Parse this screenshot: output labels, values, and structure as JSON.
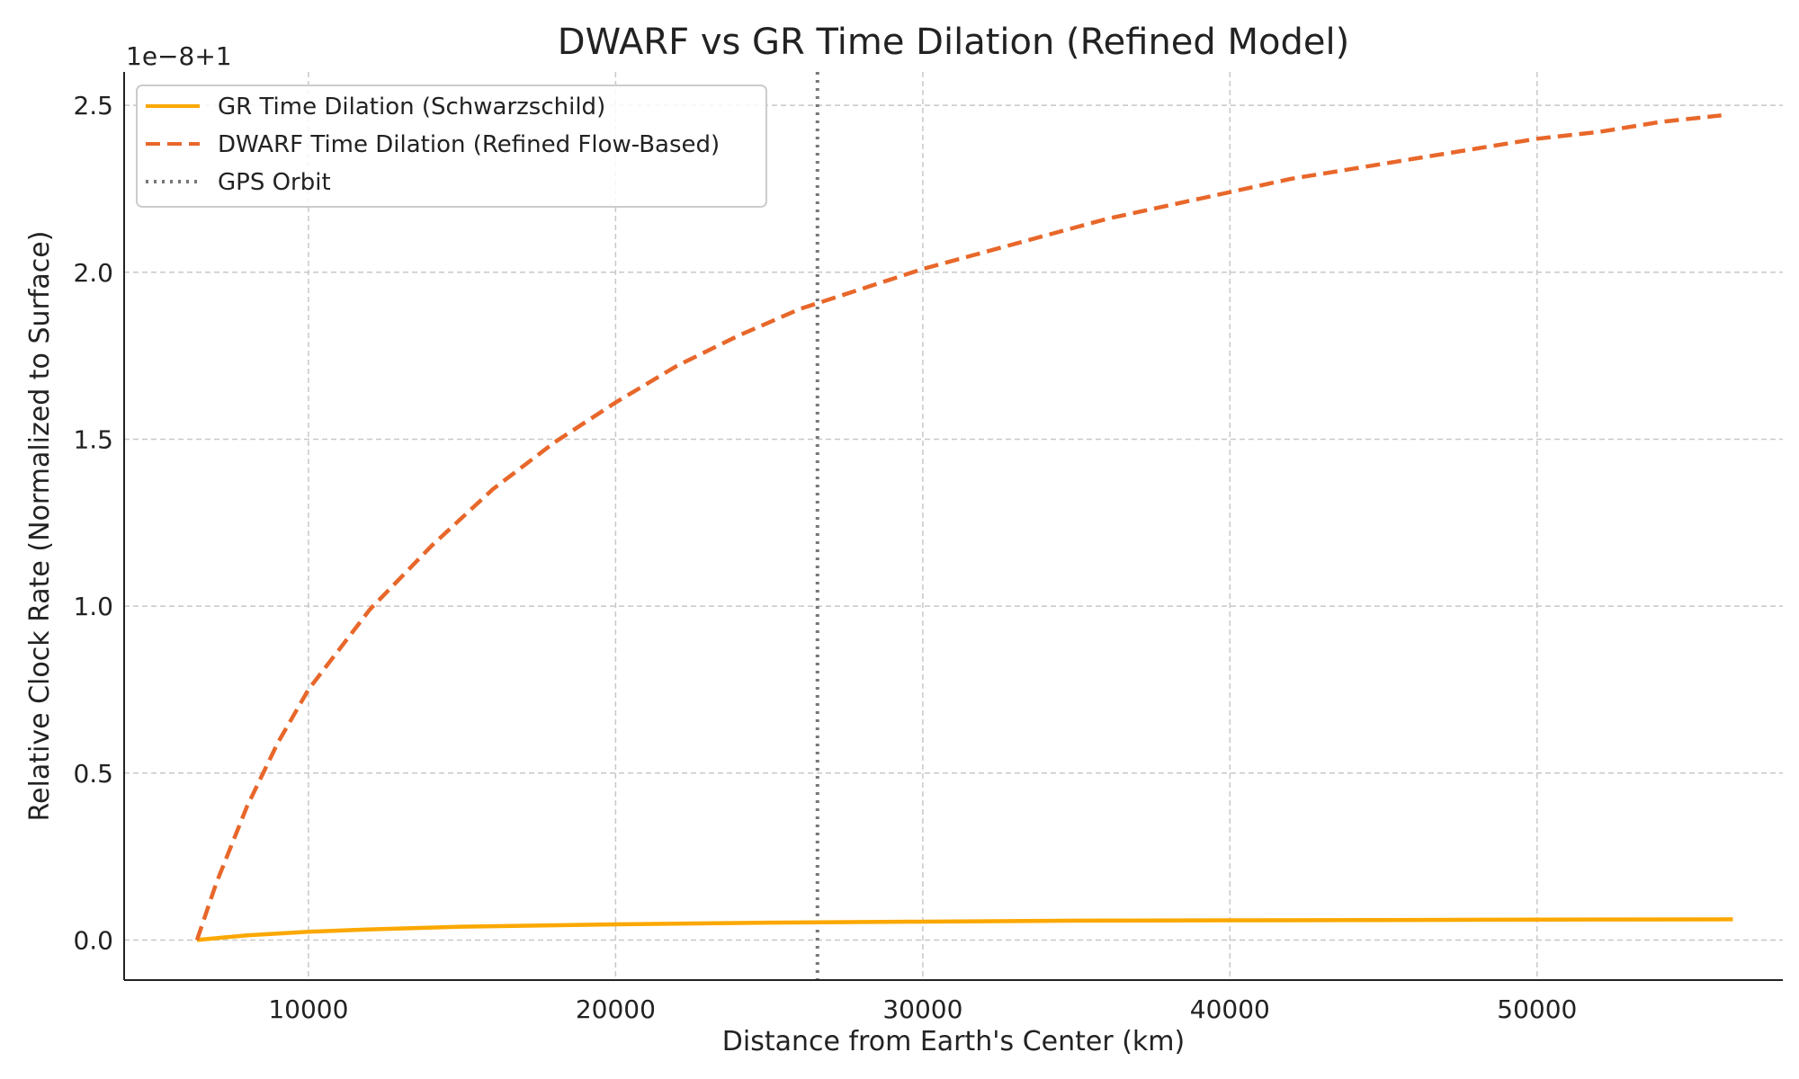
{
  "chart_data": {
    "type": "line",
    "title": "DWARF vs GR Time Dilation (Refined Model)",
    "xlabel": "Distance from Earth's Center (km)",
    "ylabel": "Relative Clock Rate (Normalized to Surface)",
    "offset_text": "1e−8+1",
    "xlim": [
      4000,
      58000
    ],
    "ylim": [
      -0.12,
      2.6
    ],
    "x_ticks": [
      10000,
      20000,
      30000,
      40000,
      50000
    ],
    "x_tick_labels": [
      "10000",
      "20000",
      "30000",
      "40000",
      "50000"
    ],
    "y_ticks": [
      0.0,
      0.5,
      1.0,
      1.5,
      2.0,
      2.5
    ],
    "y_tick_labels": [
      "0.0",
      "0.5",
      "1.0",
      "1.5",
      "2.0",
      "2.5"
    ],
    "grid": true,
    "legend_position": "top-left",
    "series": [
      {
        "name": "GR Time Dilation (Schwarzschild)",
        "style": "solid",
        "color": "#FBA800",
        "x": [
          6371,
          8000,
          10000,
          12000,
          15000,
          20000,
          25000,
          30000,
          35000,
          40000,
          45000,
          50000,
          56371
        ],
        "y": [
          0.0,
          0.014,
          0.025,
          0.032,
          0.04,
          0.047,
          0.052,
          0.055,
          0.058,
          0.059,
          0.06,
          0.061,
          0.062
        ]
      },
      {
        "name": "DWARF Time Dilation (Refined Flow-Based)",
        "style": "dashed",
        "color": "#E8672A",
        "x": [
          6371,
          7000,
          8000,
          9000,
          10000,
          12000,
          14000,
          16000,
          18000,
          20000,
          22000,
          24000,
          26000,
          28000,
          30000,
          32000,
          34000,
          36000,
          38000,
          40000,
          42000,
          44000,
          46000,
          48000,
          50000,
          52000,
          54000,
          56000
        ],
        "y": [
          0.0,
          0.17,
          0.4,
          0.59,
          0.75,
          0.99,
          1.18,
          1.35,
          1.49,
          1.61,
          1.72,
          1.81,
          1.89,
          1.95,
          2.01,
          2.06,
          2.11,
          2.16,
          2.2,
          2.24,
          2.28,
          2.31,
          2.34,
          2.37,
          2.4,
          2.42,
          2.45,
          2.47
        ]
      }
    ],
    "vlines": [
      {
        "name": "GPS Orbit",
        "x": 26571,
        "style": "dotted",
        "color": "#777777"
      }
    ]
  }
}
